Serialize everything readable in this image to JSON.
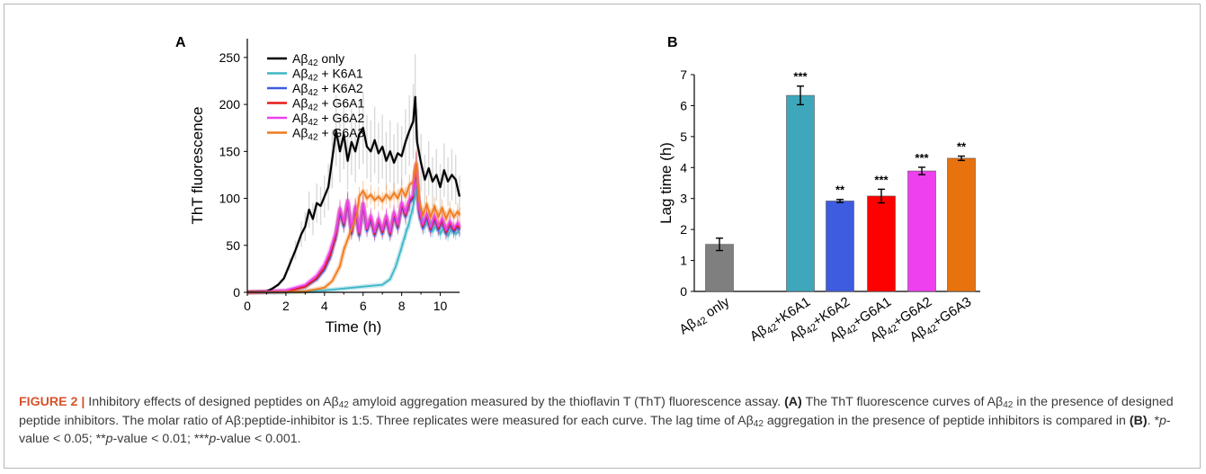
{
  "panel_a_label": "A",
  "panel_b_label": "B",
  "chart_data": [
    {
      "type": "line",
      "panel": "A",
      "xlabel": "Time (h)",
      "ylabel": "ThT fluorescence",
      "xlim": [
        0,
        11
      ],
      "ylim": [
        0,
        270
      ],
      "xticks": [
        "0",
        "2",
        "4",
        "6",
        "8",
        "10"
      ],
      "yticks": [
        "0",
        "50",
        "100",
        "150",
        "200",
        "250"
      ],
      "legend_position": "top-left",
      "error_bars": true,
      "series": [
        {
          "name": "Aβ42 only",
          "color": "#000000",
          "x": [
            0,
            1.0,
            1.3,
            1.6,
            1.9,
            2.2,
            2.5,
            2.8,
            3.0,
            3.2,
            3.4,
            3.6,
            3.8,
            4.0,
            4.2,
            4.4,
            4.6,
            4.8,
            5.0,
            5.2,
            5.4,
            5.6,
            5.8,
            6.0,
            6.2,
            6.4,
            6.6,
            6.8,
            7.0,
            7.2,
            7.4,
            7.6,
            7.8,
            8.0,
            8.2,
            8.4,
            8.6,
            8.7,
            8.8,
            9.0,
            9.2,
            9.4,
            9.6,
            9.8,
            10.0,
            10.2,
            10.4,
            10.6,
            10.8,
            11.0
          ],
          "y": [
            0,
            1,
            4,
            8,
            15,
            30,
            45,
            62,
            70,
            88,
            78,
            95,
            92,
            102,
            112,
            142,
            172,
            150,
            168,
            140,
            160,
            150,
            168,
            175,
            155,
            150,
            162,
            148,
            155,
            140,
            150,
            138,
            148,
            145,
            160,
            172,
            182,
            208,
            160,
            138,
            120,
            132,
            118,
            125,
            112,
            130,
            118,
            125,
            120,
            102
          ]
        },
        {
          "name": "Aβ42 + K6A1",
          "color": "#3fb6c7",
          "x": [
            0,
            2,
            4,
            5,
            6,
            7,
            7.4,
            7.7,
            8.0,
            8.2,
            8.4,
            8.6,
            8.75,
            8.9,
            9.0,
            9.2,
            9.4,
            9.6,
            9.8,
            10.0,
            10.2,
            10.4,
            10.6,
            10.8,
            11.0
          ],
          "y": [
            0,
            0,
            2,
            4,
            6,
            8,
            14,
            28,
            48,
            62,
            75,
            92,
            110,
            95,
            82,
            70,
            78,
            65,
            72,
            62,
            70,
            60,
            68,
            62,
            65
          ]
        },
        {
          "name": "Aβ42 + K6A2",
          "color": "#3d5ce0",
          "x": [
            0,
            2,
            3,
            3.6,
            4.0,
            4.3,
            4.6,
            4.8,
            5.0,
            5.2,
            5.4,
            5.6,
            5.8,
            6.0,
            6.2,
            6.4,
            6.6,
            6.8,
            7.0,
            7.2,
            7.4,
            7.6,
            7.8,
            8.0,
            8.2,
            8.4,
            8.6,
            8.75,
            8.9,
            9.1,
            9.3,
            9.5,
            9.7,
            9.9,
            10.1,
            10.3,
            10.5,
            10.7,
            10.9,
            11.0
          ],
          "y": [
            0,
            1,
            6,
            14,
            24,
            38,
            60,
            85,
            70,
            95,
            62,
            88,
            60,
            92,
            65,
            78,
            60,
            75,
            62,
            78,
            60,
            82,
            68,
            92,
            80,
            95,
            100,
            132,
            85,
            68,
            80,
            65,
            78,
            66,
            75,
            62,
            72,
            64,
            70,
            66
          ]
        },
        {
          "name": "Aβ42 + G6A1",
          "color": "#e81919",
          "x": [
            0,
            2,
            3,
            3.6,
            4.0,
            4.3,
            4.6,
            4.8,
            5.0,
            5.2,
            5.4,
            5.6,
            5.8,
            6.0,
            6.2,
            6.4,
            6.6,
            6.8,
            7.0,
            7.2,
            7.4,
            7.6,
            7.8,
            8.0,
            8.2,
            8.4,
            8.6,
            8.75,
            8.9,
            9.1,
            9.3,
            9.5,
            9.7,
            9.9,
            10.1,
            10.3,
            10.5,
            10.7,
            10.9,
            11.0
          ],
          "y": [
            0,
            1,
            6,
            15,
            26,
            40,
            62,
            88,
            72,
            97,
            64,
            90,
            62,
            94,
            67,
            80,
            62,
            77,
            64,
            80,
            62,
            84,
            70,
            94,
            82,
            97,
            102,
            135,
            88,
            70,
            82,
            67,
            80,
            68,
            77,
            64,
            74,
            66,
            72,
            68
          ]
        },
        {
          "name": "Aβ42 + G6A2",
          "color": "#ee40ee",
          "x": [
            0,
            2,
            3,
            3.6,
            4.0,
            4.3,
            4.6,
            4.8,
            5.0,
            5.2,
            5.4,
            5.6,
            5.8,
            6.0,
            6.2,
            6.4,
            6.6,
            6.8,
            7.0,
            7.2,
            7.4,
            7.6,
            7.8,
            8.0,
            8.2,
            8.4,
            8.6,
            8.75,
            8.9,
            9.1,
            9.3,
            9.5,
            9.7,
            9.9,
            10.1,
            10.3,
            10.5,
            10.7,
            10.9,
            11.0
          ],
          "y": [
            0,
            2,
            8,
            18,
            30,
            45,
            65,
            90,
            74,
            98,
            66,
            92,
            64,
            95,
            68,
            82,
            64,
            79,
            66,
            82,
            64,
            86,
            72,
            96,
            84,
            99,
            104,
            136,
            90,
            72,
            84,
            69,
            82,
            70,
            79,
            66,
            76,
            68,
            74,
            70
          ]
        },
        {
          "name": "Aβ42 + G6A3",
          "color": "#f07a1a",
          "x": [
            0,
            3,
            4.0,
            4.4,
            4.8,
            5.0,
            5.3,
            5.5,
            5.7,
            5.8,
            6.0,
            6.2,
            6.4,
            6.6,
            6.8,
            7.0,
            7.2,
            7.4,
            7.6,
            7.8,
            8.0,
            8.2,
            8.4,
            8.6,
            8.75,
            8.9,
            9.1,
            9.3,
            9.5,
            9.7,
            9.9,
            10.1,
            10.3,
            10.5,
            10.7,
            10.9,
            11.0
          ],
          "y": [
            0,
            1,
            5,
            12,
            28,
            45,
            62,
            72,
            85,
            102,
            108,
            100,
            104,
            98,
            102,
            97,
            104,
            99,
            106,
            100,
            110,
            102,
            114,
            118,
            138,
            98,
            82,
            94,
            80,
            92,
            80,
            90,
            78,
            88,
            80,
            86,
            82
          ]
        }
      ]
    },
    {
      "type": "bar",
      "panel": "B",
      "ylabel": "Lag time (h)",
      "ylim": [
        0,
        7
      ],
      "yticks": [
        "0",
        "1",
        "2",
        "3",
        "4",
        "5",
        "6",
        "7"
      ],
      "categories": [
        "Aβ42 only",
        "Aβ42+K6A1",
        "Aβ42+K6A2",
        "Aβ42+G6A1",
        "Aβ42+G6A2",
        "Aβ42+G6A3"
      ],
      "values": [
        1.52,
        6.33,
        2.92,
        3.08,
        3.89,
        4.3
      ],
      "errors": [
        0.2,
        0.3,
        0.05,
        0.22,
        0.12,
        0.07
      ],
      "significance": [
        "",
        "***",
        "**",
        "***",
        "***",
        "**"
      ],
      "colors": [
        "#7f7f7f",
        "#3fa7bb",
        "#3d5ce0",
        "#ff0000",
        "#ee40ee",
        "#e8720e"
      ]
    }
  ],
  "caption": {
    "label": "FIGURE 2 |",
    "text_1": " Inhibitory effects of designed peptides on Aβ",
    "sub_1": "42",
    "text_2": " amyloid aggregation measured by the thioflavin T (ThT) fluorescence assay. ",
    "a_ref": "(A)",
    "text_3": " The ThT fluorescence curves of Aβ",
    "sub_2": "42",
    "text_4": " in the presence of designed peptide inhibitors. The molar ratio of Aβ:peptide-inhibitor is 1:5. Three replicates were measured for each curve. The lag time of Aβ",
    "sub_3": "42",
    "text_5": " aggregation in the presence of peptide inhibitors is compared in ",
    "b_ref": "(B)",
    "text_6": ". *",
    "p1": "p",
    "text_7": "-value < 0.05; **",
    "p2": "p",
    "text_8": "-value < 0.01; ***",
    "p3": "p",
    "text_9": "-value < 0.001."
  }
}
